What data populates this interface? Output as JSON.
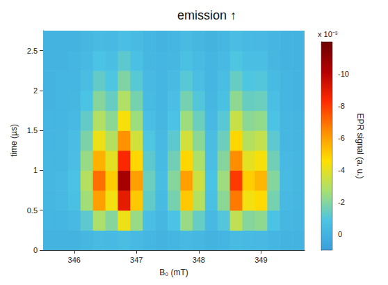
{
  "chart_data": {
    "type": "heatmap",
    "title": "emission ↑",
    "x_label": "B₀ (mT)",
    "y_label": "time (µs)",
    "z_label": "EPR signal (a. u.)",
    "z_multiplier": "x 10⁻³",
    "x": [
      345.6,
      345.8,
      346.0,
      346.2,
      346.4,
      346.6,
      346.8,
      347.0,
      347.2,
      347.4,
      347.6,
      347.8,
      348.0,
      348.2,
      348.4,
      348.6,
      348.8,
      349.0,
      349.2,
      349.4,
      349.6
    ],
    "y": [
      0.125,
      0.375,
      0.625,
      0.875,
      1.125,
      1.375,
      1.625,
      1.875,
      2.125,
      2.375,
      2.625
    ],
    "values": [
      [
        0,
        0,
        0,
        -0.2,
        -0.4,
        -0.3,
        -0.5,
        -0.3,
        -0.1,
        0,
        -0.1,
        -0.3,
        -0.2,
        0,
        -0.1,
        -0.4,
        -0.3,
        -0.3,
        -0.1,
        0,
        0
      ],
      [
        -0.1,
        -0.1,
        -0.3,
        -1.2,
        -2.8,
        -2.0,
        -4.2,
        -2.4,
        -0.6,
        -0.2,
        -0.8,
        -2.4,
        -1.4,
        -0.3,
        -1.0,
        -3.2,
        -2.0,
        -2.2,
        -0.8,
        -0.2,
        -0.1
      ],
      [
        -0.2,
        -0.3,
        -0.7,
        -2.6,
        -6.0,
        -4.3,
        -8.9,
        -5.1,
        -1.3,
        -0.4,
        -1.7,
        -5.1,
        -3.0,
        -0.7,
        -2.1,
        -6.8,
        -4.3,
        -4.7,
        -1.7,
        -0.3,
        -0.2
      ],
      [
        -0.2,
        -0.3,
        -0.8,
        -3.0,
        -7.0,
        -5.0,
        -10.5,
        -6.0,
        -1.5,
        -0.5,
        -2.0,
        -6.0,
        -3.5,
        -0.8,
        -2.5,
        -8.0,
        -5.0,
        -5.5,
        -2.0,
        -0.4,
        -0.2
      ],
      [
        -0.2,
        -0.2,
        -0.6,
        -2.4,
        -5.6,
        -4.0,
        -8.4,
        -4.8,
        -1.2,
        -0.4,
        -1.6,
        -4.8,
        -2.8,
        -0.6,
        -2.0,
        -6.4,
        -4.0,
        -4.4,
        -1.6,
        -0.3,
        -0.2
      ],
      [
        -0.1,
        -0.2,
        -0.5,
        -1.8,
        -4.2,
        -3.0,
        -6.3,
        -3.6,
        -0.9,
        -0.3,
        -1.2,
        -3.6,
        -2.1,
        -0.5,
        -1.5,
        -4.8,
        -3.0,
        -3.3,
        -1.2,
        -0.2,
        -0.1
      ],
      [
        -0.1,
        -0.1,
        -0.3,
        -1.3,
        -2.9,
        -2.1,
        -4.4,
        -2.5,
        -0.6,
        -0.2,
        -0.8,
        -2.5,
        -1.5,
        -0.3,
        -1.1,
        -3.4,
        -2.1,
        -2.3,
        -0.8,
        -0.2,
        -0.1
      ],
      [
        0,
        -0.1,
        -0.2,
        -0.8,
        -2.0,
        -1.4,
        -2.9,
        -1.7,
        -0.4,
        -0.1,
        -0.6,
        -1.7,
        -1.0,
        -0.2,
        -0.7,
        -2.2,
        -1.4,
        -1.5,
        -0.6,
        -0.1,
        0
      ],
      [
        0,
        -0.1,
        -0.1,
        -0.5,
        -1.3,
        -0.9,
        -1.9,
        -1.1,
        -0.3,
        -0.1,
        -0.4,
        -1.1,
        -0.6,
        -0.1,
        -0.5,
        -1.4,
        -0.9,
        -1.0,
        -0.4,
        -0.1,
        0
      ],
      [
        0,
        0,
        -0.1,
        -0.3,
        -0.8,
        -0.6,
        -1.2,
        -0.7,
        -0.2,
        -0.1,
        -0.2,
        -0.7,
        -0.4,
        -0.1,
        -0.3,
        -0.9,
        -0.6,
        -0.6,
        -0.2,
        0,
        0
      ],
      [
        0,
        0,
        0,
        -0.2,
        -0.4,
        -0.3,
        -0.6,
        -0.4,
        -0.1,
        0,
        -0.1,
        -0.4,
        -0.2,
        0,
        -0.2,
        -0.5,
        -0.3,
        -0.3,
        -0.1,
        0,
        0
      ]
    ],
    "xlim": [
      345.5,
      349.7
    ],
    "xticks": [
      346,
      347,
      348,
      349
    ],
    "ylim": [
      0,
      2.75
    ],
    "yticks": [
      0,
      0.5,
      1,
      1.5,
      2,
      2.5
    ],
    "zlim": [
      -12,
      1
    ],
    "zticks": [
      0,
      -2,
      -4,
      -6,
      -8,
      -10
    ],
    "grid": false
  }
}
